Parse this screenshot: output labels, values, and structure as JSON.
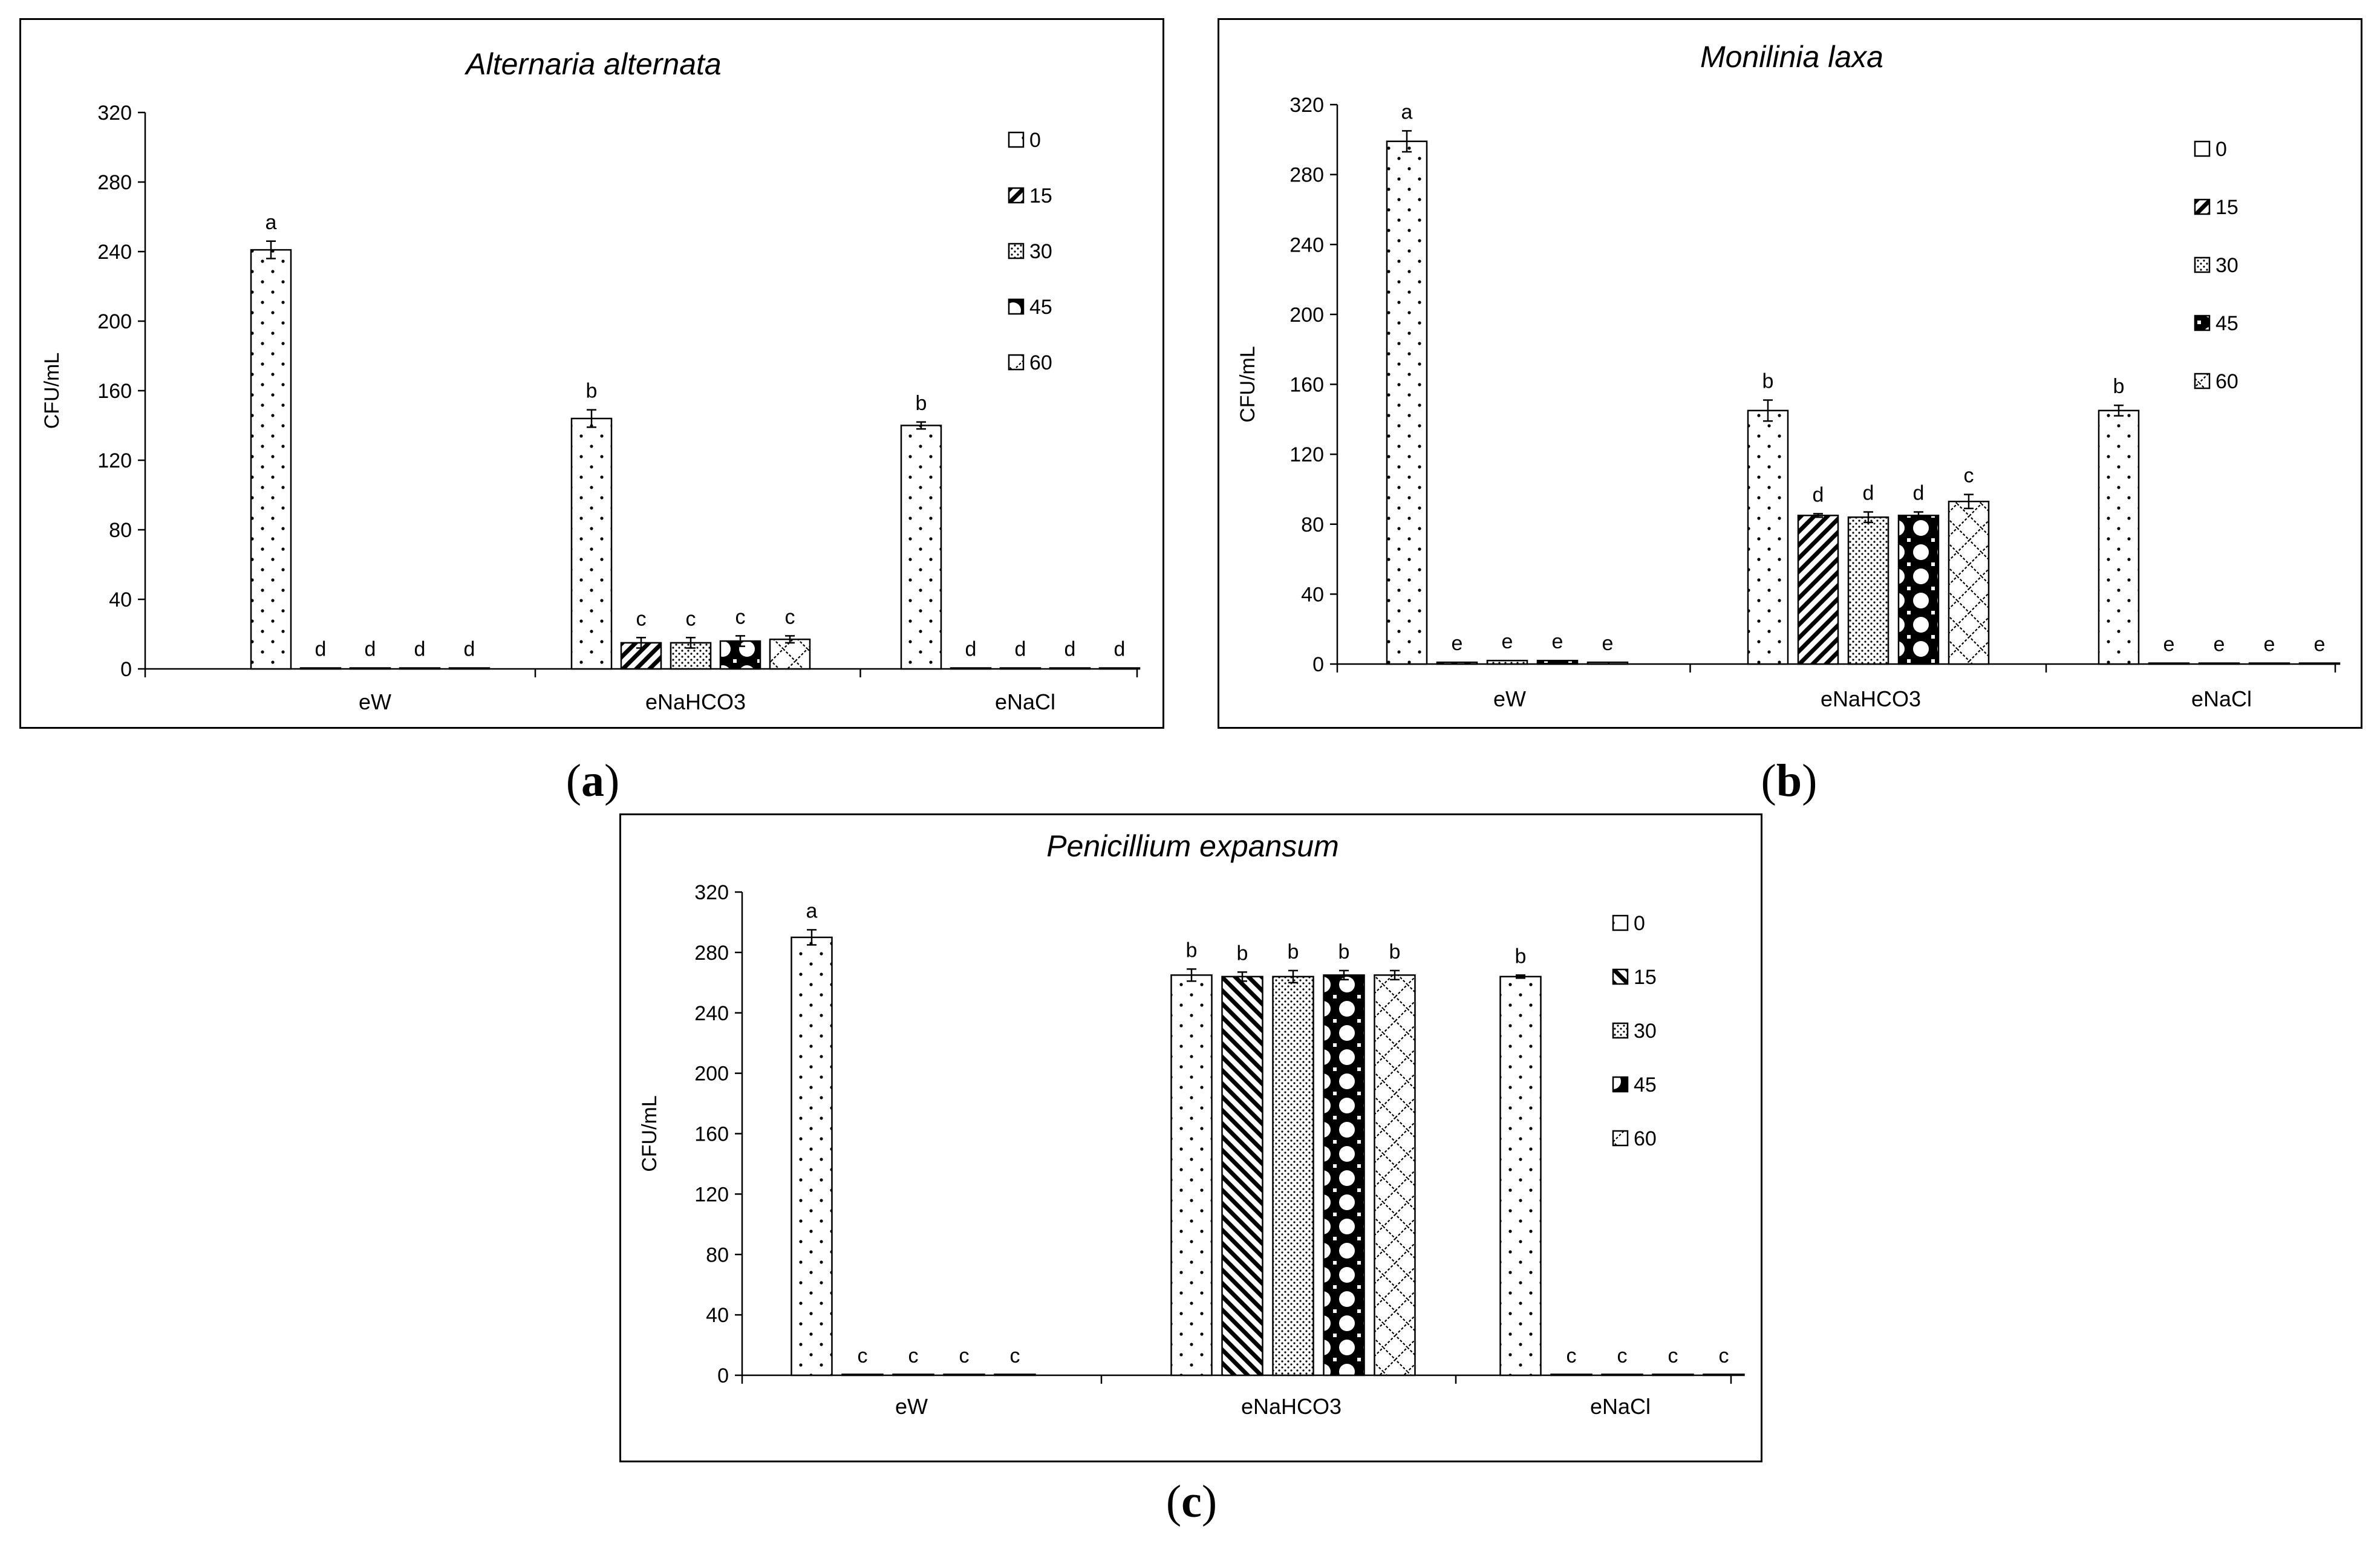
{
  "chart_data": [
    {
      "type": "bar",
      "panel": "a",
      "title": "Alternaria alternata",
      "ylabel": "CFU/mL",
      "xlabel": "",
      "ylim": [
        0,
        320
      ],
      "yticks": [
        "0",
        "40",
        "80",
        "120",
        "160",
        "200",
        "240",
        "280",
        "320"
      ],
      "categories": [
        "eW",
        "eNaHCO3",
        "eNaCl"
      ],
      "series": [
        {
          "name": "0",
          "values": [
            241,
            144,
            140
          ],
          "errors": [
            5,
            5,
            2
          ],
          "letters": [
            "a",
            "b",
            "b"
          ]
        },
        {
          "name": "15",
          "values": [
            0.5,
            15,
            0.5
          ],
          "errors": [
            0,
            3,
            0
          ],
          "letters": [
            "d",
            "c",
            "d"
          ]
        },
        {
          "name": "30",
          "values": [
            0.5,
            15,
            0.5
          ],
          "errors": [
            0,
            3,
            0
          ],
          "letters": [
            "d",
            "c",
            "d"
          ]
        },
        {
          "name": "45",
          "values": [
            0.5,
            16,
            0.5
          ],
          "errors": [
            0,
            3,
            0
          ],
          "letters": [
            "d",
            "c",
            "d"
          ]
        },
        {
          "name": "60",
          "values": [
            0.5,
            17,
            0.5
          ],
          "errors": [
            0,
            2,
            0
          ],
          "letters": [
            "d",
            "c",
            "d"
          ]
        }
      ],
      "legend_position": "top-right",
      "caption": "(a)"
    },
    {
      "type": "bar",
      "panel": "b",
      "title": "Monilinia laxa",
      "ylabel": "CFU/mL",
      "xlabel": "",
      "ylim": [
        0,
        320
      ],
      "yticks": [
        "0",
        "40",
        "80",
        "120",
        "160",
        "200",
        "240",
        "280",
        "320"
      ],
      "categories": [
        "eW",
        "eNaHCO3",
        "eNaCl"
      ],
      "series": [
        {
          "name": "0",
          "values": [
            299,
            145,
            145
          ],
          "errors": [
            6,
            6,
            3
          ],
          "letters": [
            "a",
            "b",
            "b"
          ]
        },
        {
          "name": "15",
          "values": [
            1,
            85,
            0.5
          ],
          "errors": [
            0,
            1,
            0
          ],
          "letters": [
            "e",
            "d",
            "e"
          ]
        },
        {
          "name": "30",
          "values": [
            2,
            84,
            0.5
          ],
          "errors": [
            0,
            3,
            0
          ],
          "letters": [
            "e",
            "d",
            "e"
          ]
        },
        {
          "name": "45",
          "values": [
            2,
            85,
            0.5
          ],
          "errors": [
            0,
            2,
            0
          ],
          "letters": [
            "e",
            "d",
            "e"
          ]
        },
        {
          "name": "60",
          "values": [
            1,
            93,
            0.5
          ],
          "errors": [
            0,
            4,
            0
          ],
          "letters": [
            "e",
            "c",
            "e"
          ]
        }
      ],
      "legend_position": "top-right",
      "caption": "(b)"
    },
    {
      "type": "bar",
      "panel": "c",
      "title": "Penicillium expansum",
      "ylabel": "CFU/mL",
      "xlabel": "",
      "ylim": [
        0,
        320
      ],
      "yticks": [
        "0",
        "40",
        "80",
        "120",
        "160",
        "200",
        "240",
        "280",
        "320"
      ],
      "categories": [
        "eW",
        "eNaHCO3",
        "eNaCl"
      ],
      "series": [
        {
          "name": "0",
          "values": [
            290,
            265,
            264
          ],
          "errors": [
            5,
            4,
            1
          ],
          "letters": [
            "a",
            "b",
            "b"
          ]
        },
        {
          "name": "15",
          "values": [
            0.5,
            264,
            0.5
          ],
          "errors": [
            0,
            3,
            0
          ],
          "letters": [
            "c",
            "b",
            "c"
          ]
        },
        {
          "name": "30",
          "values": [
            0.5,
            264,
            0.5
          ],
          "errors": [
            0,
            4,
            0
          ],
          "letters": [
            "c",
            "b",
            "c"
          ]
        },
        {
          "name": "45",
          "values": [
            0.5,
            265,
            0.5
          ],
          "errors": [
            0,
            3,
            0
          ],
          "letters": [
            "c",
            "b",
            "c"
          ]
        },
        {
          "name": "60",
          "values": [
            0.5,
            265,
            0.5
          ],
          "errors": [
            0,
            3,
            0
          ],
          "letters": [
            "c",
            "b",
            "c"
          ]
        }
      ],
      "legend_position": "top-right",
      "caption": "(c)"
    }
  ]
}
